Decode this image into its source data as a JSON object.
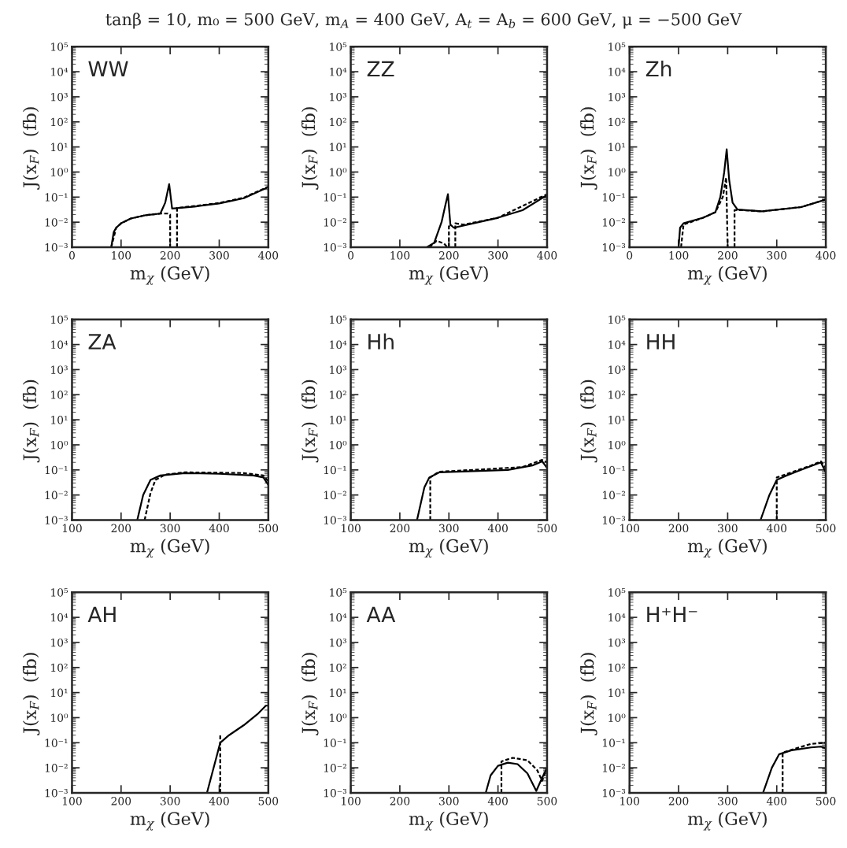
{
  "chart_data": [
    {
      "type": "line",
      "title": "tanβ = 10, m₀ = 500 GeV, m$_{A}$ = 400 GeV, A$_{t}$ = A$_{b}$ = 600 GeV, μ = −500 GeV",
      "annotations": [
        "WW"
      ],
      "xlabel": "m$_{χ}$ (GeV)",
      "ylabel": "J(x$_{F}$)  (fb)",
      "log": "y",
      "xlim": [
        0,
        400
      ],
      "xticks": [
        0,
        100,
        200,
        300,
        400
      ],
      "ylim": [
        0.001,
        100000
      ],
      "yticks": [
        {
          "value": 0.001,
          "label": "10⁻³"
        },
        {
          "value": 0.01,
          "label": "10⁻²"
        },
        {
          "value": 0.1,
          "label": "10⁻¹"
        },
        {
          "value": 1,
          "label": "10⁰"
        },
        {
          "value": 10,
          "label": "10¹"
        },
        {
          "value": 100,
          "label": "10²"
        },
        {
          "value": 1000,
          "label": "10³"
        },
        {
          "value": 10000,
          "label": "10⁴"
        },
        {
          "value": 100000,
          "label": "10⁵"
        }
      ],
      "grid": false,
      "series": [
        {
          "color": "#000000",
          "line_style": "solid",
          "x": [
            80,
            85,
            90,
            100,
            120,
            150,
            180,
            190,
            198,
            204,
            250,
            300,
            350,
            400
          ],
          "values": [
            0.001,
            0.004,
            0.006,
            0.009,
            0.014,
            0.019,
            0.022,
            0.06,
            0.33,
            0.035,
            0.042,
            0.056,
            0.09,
            0.25
          ]
        },
        {
          "color": "#000000",
          "line_style": "dashed",
          "x": [
            80,
            90,
            100,
            120,
            150,
            180,
            195,
            200,
            200,
            207,
            214,
            214,
            250,
            300,
            350,
            400
          ],
          "values": [
            0.001,
            0.006,
            0.009,
            0.014,
            0.019,
            0.022,
            0.022,
            0.02,
            0.001,
            null,
            0.001,
            0.037,
            0.044,
            0.058,
            0.095,
            0.26
          ]
        }
      ]
    },
    {
      "type": "line",
      "annotations": [
        "ZZ"
      ],
      "xlabel": "m$_{χ}$ (GeV)",
      "ylabel": "J(x$_{F}$)  (fb)",
      "log": "y",
      "xlim": [
        0,
        400
      ],
      "xticks": [
        0,
        100,
        200,
        300,
        400
      ],
      "ylim": [
        0.001,
        100000
      ],
      "yticks": [
        {
          "value": 0.001,
          "label": "10⁻³"
        },
        {
          "value": 0.01,
          "label": "10⁻²"
        },
        {
          "value": 0.1,
          "label": "10⁻¹"
        },
        {
          "value": 1,
          "label": "10⁰"
        },
        {
          "value": 10,
          "label": "10¹"
        },
        {
          "value": 100,
          "label": "10²"
        },
        {
          "value": 1000,
          "label": "10³"
        },
        {
          "value": 10000,
          "label": "10⁴"
        },
        {
          "value": 100000,
          "label": "10⁵"
        }
      ],
      "grid": false,
      "series": [
        {
          "color": "#000000",
          "line_style": "solid",
          "x": [
            155,
            170,
            185,
            193,
            198,
            203,
            210,
            250,
            300,
            350,
            400
          ],
          "values": [
            0.001,
            0.0015,
            0.01,
            0.05,
            0.13,
            0.008,
            0.006,
            0.009,
            0.015,
            0.03,
            0.12
          ]
        },
        {
          "color": "#000000",
          "line_style": "dashed",
          "x": [
            160,
            175,
            190,
            197,
            198,
            200,
            200,
            203,
            208,
            213,
            213,
            230,
            300,
            400
          ],
          "values": [
            0.001,
            0.0018,
            0.0014,
            0.001,
            null,
            0.001,
            0.008,
            0.007,
            null,
            0.001,
            0.009,
            0.008,
            0.015,
            0.13
          ]
        }
      ]
    },
    {
      "type": "line",
      "annotations": [
        "Zh"
      ],
      "xlabel": "m$_{χ}$ (GeV)",
      "ylabel": "J(x$_{F}$)  (fb)",
      "log": "y",
      "xlim": [
        0,
        400
      ],
      "xticks": [
        0,
        100,
        200,
        300,
        400
      ],
      "ylim": [
        0.001,
        100000
      ],
      "yticks": [
        {
          "value": 0.001,
          "label": "10⁻³"
        },
        {
          "value": 0.01,
          "label": "10⁻²"
        },
        {
          "value": 0.1,
          "label": "10⁻¹"
        },
        {
          "value": 1,
          "label": "10⁰"
        },
        {
          "value": 10,
          "label": "10¹"
        },
        {
          "value": 100,
          "label": "10²"
        },
        {
          "value": 1000,
          "label": "10³"
        },
        {
          "value": 10000,
          "label": "10⁴"
        },
        {
          "value": 100000,
          "label": "10⁵"
        }
      ],
      "grid": false,
      "series": [
        {
          "color": "#000000",
          "line_style": "solid",
          "x": [
            100,
            103,
            110,
            150,
            175,
            185,
            193,
            198,
            203,
            210,
            220,
            270,
            350,
            400
          ],
          "values": [
            0.001,
            0.006,
            0.009,
            0.015,
            0.025,
            0.1,
            1,
            8,
            0.5,
            0.06,
            0.032,
            0.027,
            0.04,
            0.08
          ]
        },
        {
          "color": "#000000",
          "line_style": "dashed",
          "x": [
            105,
            110,
            150,
            175,
            190,
            197,
            200,
            207,
            214,
            214,
            230,
            270,
            350,
            400
          ],
          "values": [
            0.001,
            0.008,
            0.015,
            0.025,
            0.1,
            0.6,
            0.001,
            null,
            0.001,
            0.03,
            0.03,
            0.027,
            0.04,
            0.08
          ]
        }
      ]
    },
    {
      "type": "line",
      "annotations": [
        "ZA"
      ],
      "xlabel": "m$_{χ}$ (GeV)",
      "ylabel": "J(x$_{F}$)  (fb)",
      "log": "y",
      "xlim": [
        100,
        500
      ],
      "xticks": [
        100,
        200,
        300,
        400,
        500
      ],
      "ylim": [
        0.001,
        100000
      ],
      "yticks": [
        {
          "value": 0.001,
          "label": "10⁻³"
        },
        {
          "value": 0.01,
          "label": "10⁻²"
        },
        {
          "value": 0.1,
          "label": "10⁻¹"
        },
        {
          "value": 1,
          "label": "10⁰"
        },
        {
          "value": 10,
          "label": "10¹"
        },
        {
          "value": 100,
          "label": "10²"
        },
        {
          "value": 1000,
          "label": "10³"
        },
        {
          "value": 10000,
          "label": "10⁴"
        },
        {
          "value": 100000,
          "label": "10⁵"
        }
      ],
      "grid": false,
      "series": [
        {
          "color": "#000000",
          "line_style": "solid",
          "x": [
            233,
            245,
            260,
            280,
            330,
            400,
            470,
            490,
            500
          ],
          "values": [
            0.001,
            0.01,
            0.04,
            0.06,
            0.075,
            0.07,
            0.06,
            0.05,
            0.025
          ]
        },
        {
          "color": "#000000",
          "line_style": "dashed",
          "x": [
            248,
            260,
            270,
            290,
            330,
            450,
            490,
            500
          ],
          "values": [
            0.001,
            0.012,
            0.04,
            0.065,
            0.08,
            0.075,
            0.06,
            0.035
          ]
        }
      ]
    },
    {
      "type": "line",
      "annotations": [
        "Hh"
      ],
      "xlabel": "m$_{χ}$ (GeV)",
      "ylabel": "J(x$_{F}$)  (fb)",
      "log": "y",
      "xlim": [
        100,
        500
      ],
      "xticks": [
        100,
        200,
        300,
        400,
        500
      ],
      "ylim": [
        0.001,
        100000
      ],
      "yticks": [
        {
          "value": 0.001,
          "label": "10⁻³"
        },
        {
          "value": 0.01,
          "label": "10⁻²"
        },
        {
          "value": 0.1,
          "label": "10⁻¹"
        },
        {
          "value": 1,
          "label": "10⁰"
        },
        {
          "value": 10,
          "label": "10¹"
        },
        {
          "value": 100,
          "label": "10²"
        },
        {
          "value": 1000,
          "label": "10³"
        },
        {
          "value": 10000,
          "label": "10⁴"
        },
        {
          "value": 100000,
          "label": "10⁵"
        }
      ],
      "grid": false,
      "series": [
        {
          "color": "#000000",
          "line_style": "solid",
          "x": [
            235,
            250,
            260,
            280,
            350,
            420,
            470,
            490,
            500
          ],
          "values": [
            0.001,
            0.02,
            0.05,
            0.08,
            0.09,
            0.1,
            0.15,
            0.22,
            0.12
          ]
        },
        {
          "color": "#000000",
          "line_style": "dashed",
          "x": [
            262,
            262,
            280,
            350,
            450,
            490,
            500
          ],
          "values": [
            0.001,
            0.05,
            0.085,
            0.1,
            0.13,
            0.25,
            0.2
          ]
        }
      ]
    },
    {
      "type": "line",
      "annotations": [
        "HH"
      ],
      "xlabel": "m$_{χ}$ (GeV)",
      "ylabel": "J(x$_{F}$)  (fb)",
      "log": "y",
      "xlim": [
        100,
        500
      ],
      "xticks": [
        100,
        200,
        300,
        400,
        500
      ],
      "ylim": [
        0.001,
        100000
      ],
      "yticks": [
        {
          "value": 0.001,
          "label": "10⁻³"
        },
        {
          "value": 0.01,
          "label": "10⁻²"
        },
        {
          "value": 0.1,
          "label": "10⁻¹"
        },
        {
          "value": 1,
          "label": "10⁰"
        },
        {
          "value": 10,
          "label": "10¹"
        },
        {
          "value": 100,
          "label": "10²"
        },
        {
          "value": 1000,
          "label": "10³"
        },
        {
          "value": 10000,
          "label": "10⁴"
        },
        {
          "value": 100000,
          "label": "10⁵"
        }
      ],
      "grid": false,
      "series": [
        {
          "color": "#000000",
          "line_style": "solid",
          "x": [
            367,
            385,
            400,
            420,
            460,
            490,
            500
          ],
          "values": [
            0.001,
            0.01,
            0.04,
            0.06,
            0.12,
            0.2,
            0.08
          ]
        },
        {
          "color": "#000000",
          "line_style": "dashed",
          "x": [
            400,
            400,
            430,
            470,
            490,
            500
          ],
          "values": [
            0.001,
            0.05,
            0.08,
            0.15,
            0.22,
            0.12
          ]
        }
      ]
    },
    {
      "type": "line",
      "annotations": [
        "AH"
      ],
      "xlabel": "m$_{χ}$ (GeV)",
      "ylabel": "J(x$_{F}$)  (fb)",
      "log": "y",
      "xlim": [
        100,
        500
      ],
      "xticks": [
        100,
        200,
        300,
        400,
        500
      ],
      "ylim": [
        0.001,
        100000
      ],
      "yticks": [
        {
          "value": 0.001,
          "label": "10⁻³"
        },
        {
          "value": 0.01,
          "label": "10⁻²"
        },
        {
          "value": 0.1,
          "label": "10⁻¹"
        },
        {
          "value": 1,
          "label": "10⁰"
        },
        {
          "value": 10,
          "label": "10¹"
        },
        {
          "value": 100,
          "label": "10²"
        },
        {
          "value": 1000,
          "label": "10³"
        },
        {
          "value": 10000,
          "label": "10⁴"
        },
        {
          "value": 100000,
          "label": "10⁵"
        }
      ],
      "grid": false,
      "series": [
        {
          "color": "#000000",
          "line_style": "solid",
          "x": [
            375,
            395,
            402,
            420,
            450,
            480,
            495,
            500
          ],
          "values": [
            0.001,
            0.03,
            0.1,
            0.2,
            0.5,
            1.5,
            3,
            3
          ]
        },
        {
          "color": "#000000",
          "line_style": "dashed",
          "x": [
            402,
            402
          ],
          "values": [
            0.001,
            0.2
          ]
        }
      ]
    },
    {
      "type": "line",
      "annotations": [
        "AA"
      ],
      "xlabel": "m$_{χ}$ (GeV)",
      "ylabel": "J(x$_{F}$)  (fb)",
      "log": "y",
      "xlim": [
        100,
        500
      ],
      "xticks": [
        100,
        200,
        300,
        400,
        500
      ],
      "ylim": [
        0.001,
        100000
      ],
      "yticks": [
        {
          "value": 0.001,
          "label": "10⁻³"
        },
        {
          "value": 0.01,
          "label": "10⁻²"
        },
        {
          "value": 0.1,
          "label": "10⁻¹"
        },
        {
          "value": 1,
          "label": "10⁰"
        },
        {
          "value": 10,
          "label": "10¹"
        },
        {
          "value": 100,
          "label": "10²"
        },
        {
          "value": 1000,
          "label": "10³"
        },
        {
          "value": 10000,
          "label": "10⁴"
        },
        {
          "value": 100000,
          "label": "10⁵"
        }
      ],
      "grid": false,
      "series": [
        {
          "color": "#000000",
          "line_style": "solid",
          "x": [
            375,
            385,
            400,
            420,
            440,
            460,
            478,
            490,
            500
          ],
          "values": [
            0.001,
            0.005,
            0.012,
            0.016,
            0.014,
            0.006,
            0.0012,
            0.004,
            0.01
          ]
        },
        {
          "color": "#000000",
          "line_style": "dashed",
          "x": [
            407,
            407,
            430,
            460,
            480,
            490,
            500
          ],
          "values": [
            0.001,
            0.018,
            0.025,
            0.02,
            0.008,
            0.003,
            0.01
          ]
        }
      ]
    },
    {
      "type": "line",
      "annotations": [
        "H⁺H⁻"
      ],
      "xlabel": "m$_{χ}$ (GeV)",
      "ylabel": "J(x$_{F}$)  (fb)",
      "log": "y",
      "xlim": [
        100,
        500
      ],
      "xticks": [
        100,
        200,
        300,
        400,
        500
      ],
      "ylim": [
        0.001,
        100000
      ],
      "yticks": [
        {
          "value": 0.001,
          "label": "10⁻³"
        },
        {
          "value": 0.01,
          "label": "10⁻²"
        },
        {
          "value": 0.1,
          "label": "10⁻¹"
        },
        {
          "value": 1,
          "label": "10⁰"
        },
        {
          "value": 10,
          "label": "10¹"
        },
        {
          "value": 100,
          "label": "10²"
        },
        {
          "value": 1000,
          "label": "10³"
        },
        {
          "value": 10000,
          "label": "10⁴"
        },
        {
          "value": 100000,
          "label": "10⁵"
        }
      ],
      "grid": false,
      "series": [
        {
          "color": "#000000",
          "line_style": "solid",
          "x": [
            372,
            390,
            405,
            430,
            470,
            490,
            500
          ],
          "values": [
            0.001,
            0.01,
            0.035,
            0.05,
            0.065,
            0.07,
            0.06
          ]
        },
        {
          "color": "#000000",
          "line_style": "dashed",
          "x": [
            412,
            412,
            440,
            470,
            500
          ],
          "values": [
            0.001,
            0.04,
            0.06,
            0.09,
            0.1
          ]
        }
      ]
    }
  ]
}
